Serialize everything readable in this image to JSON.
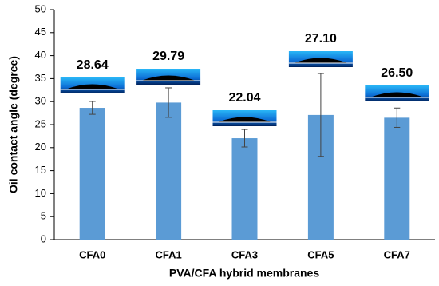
{
  "chart_data": {
    "type": "bar",
    "x_label": "PVA/CFA hybrid membranes",
    "y_label": "Oil contact angle (degree)",
    "categories": [
      "CFA0",
      "CFA1",
      "CFA3",
      "CFA5",
      "CFA7"
    ],
    "values": [
      28.64,
      29.79,
      22.04,
      27.1,
      26.5
    ],
    "value_labels": [
      "28.64",
      "29.79",
      "22.04",
      "27.10",
      "26.50"
    ],
    "errors": [
      1.4,
      3.2,
      1.9,
      9.0,
      2.1
    ],
    "color": "#5b9bd5",
    "ylim": [
      0,
      50
    ],
    "yticks": [
      0,
      5,
      10,
      15,
      20,
      25,
      30,
      35,
      40,
      45,
      50
    ],
    "grid": false
  }
}
